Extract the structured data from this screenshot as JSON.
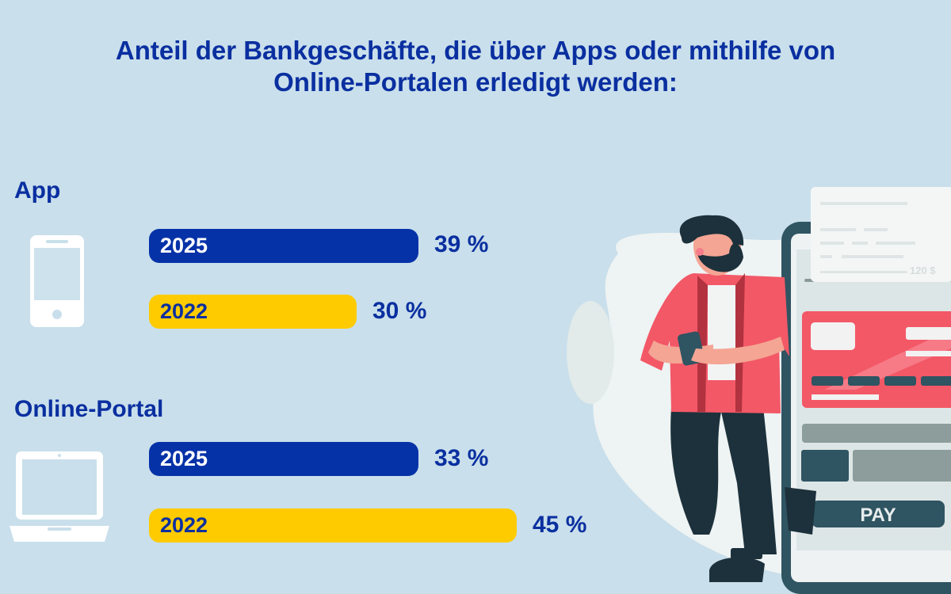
{
  "chart_data": {
    "type": "bar",
    "orientation": "horizontal",
    "title": "Anteil der Bankgeschäfte, die über Apps oder mithilfe von Online-Portalen erledigt werden:",
    "title_lines": [
      "Anteil der Bankgeschäfte, die über Apps oder mithilfe von",
      "Online-Portalen erledigt werden:"
    ],
    "unit": "%",
    "groups": [
      {
        "name": "App",
        "icon": "smartphone-icon",
        "bars": [
          {
            "year": "2025",
            "value": 39,
            "label": "39 %"
          },
          {
            "year": "2022",
            "value": 30,
            "label": "30 %"
          }
        ]
      },
      {
        "name": "Online-Portal",
        "icon": "laptop-icon",
        "bars": [
          {
            "year": "2025",
            "value": 33,
            "label": "33 %"
          },
          {
            "year": "2022",
            "value": 45,
            "label": "45 %"
          }
        ]
      }
    ],
    "colors": {
      "2025": "#0632a8",
      "2022": "#fdcb00",
      "text": "#0a2fa0",
      "background": "#c9dfeb"
    }
  },
  "illustration": {
    "receipt_amount": "120 $",
    "pay_button": "PAY"
  }
}
